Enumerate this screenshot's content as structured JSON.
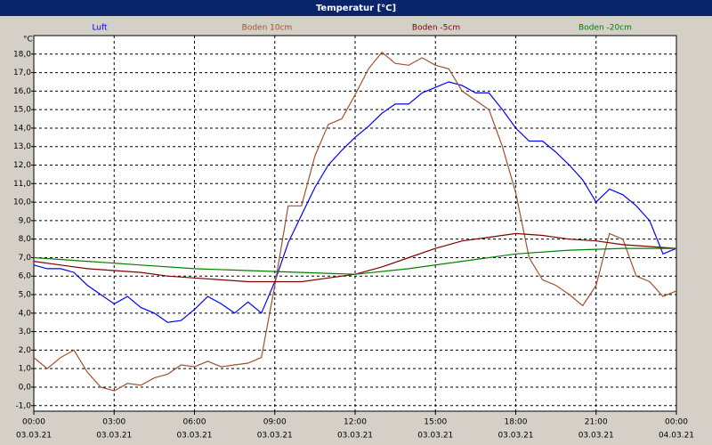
{
  "chart_data": {
    "type": "line",
    "title": "Temperatur [°C]",
    "y_unit": "°C",
    "xlim": [
      0,
      24
    ],
    "ylim": [
      -1.3,
      19.0
    ],
    "grid": true,
    "xticks": [
      {
        "value": 0,
        "label": "00:00"
      },
      {
        "value": 3,
        "label": "03:00"
      },
      {
        "value": 6,
        "label": "06:00"
      },
      {
        "value": 9,
        "label": "09:00"
      },
      {
        "value": 12,
        "label": "12:00"
      },
      {
        "value": 15,
        "label": "15:00"
      },
      {
        "value": 18,
        "label": "18:00"
      },
      {
        "value": 21,
        "label": "21:00"
      },
      {
        "value": 24,
        "label": "00:00"
      }
    ],
    "xtick_dates": [
      "03.03.21",
      "03.03.21",
      "03.03.21",
      "03.03.21",
      "03.03.21",
      "03.03.21",
      "03.03.21",
      "03.03.21",
      "04.03.21"
    ],
    "yticks": [
      {
        "value": -1,
        "label": "-1,0"
      },
      {
        "value": 0,
        "label": "0,0"
      },
      {
        "value": 1,
        "label": "1,0"
      },
      {
        "value": 2,
        "label": "2,0"
      },
      {
        "value": 3,
        "label": "3,0"
      },
      {
        "value": 4,
        "label": "4,0"
      },
      {
        "value": 5,
        "label": "5,0"
      },
      {
        "value": 6,
        "label": "6,0"
      },
      {
        "value": 7,
        "label": "7,0"
      },
      {
        "value": 8,
        "label": "8,0"
      },
      {
        "value": 9,
        "label": "9,0"
      },
      {
        "value": 10,
        "label": "10,0"
      },
      {
        "value": 11,
        "label": "11,0"
      },
      {
        "value": 12,
        "label": "12,0"
      },
      {
        "value": 13,
        "label": "13,0"
      },
      {
        "value": 14,
        "label": "14,0"
      },
      {
        "value": 15,
        "label": "15,0"
      },
      {
        "value": 16,
        "label": "16,0"
      },
      {
        "value": 17,
        "label": "17,0"
      },
      {
        "value": 18,
        "label": "18,0"
      }
    ],
    "series": [
      {
        "name": "Luft",
        "color": "#0000ff",
        "x": [
          0,
          0.5,
          1,
          1.5,
          2,
          2.5,
          3,
          3.5,
          4,
          4.5,
          5,
          5.5,
          6,
          6.5,
          7,
          7.5,
          8,
          8.5,
          9,
          9.5,
          10,
          10.5,
          11,
          11.5,
          12,
          12.5,
          13,
          13.5,
          14,
          14.5,
          15,
          15.5,
          16,
          16.5,
          17,
          17.5,
          18,
          18.5,
          19,
          19.5,
          20,
          20.5,
          21,
          21.5,
          22,
          22.5,
          23,
          23.5,
          24
        ],
        "values": [
          6.6,
          6.4,
          6.4,
          6.2,
          5.5,
          5.0,
          4.5,
          4.9,
          4.3,
          4.0,
          3.5,
          3.6,
          4.2,
          4.9,
          4.5,
          4.0,
          4.6,
          4.0,
          5.7,
          7.8,
          9.3,
          10.8,
          12.0,
          12.8,
          13.5,
          14.1,
          14.8,
          15.3,
          15.3,
          15.9,
          16.2,
          16.5,
          16.3,
          15.9,
          15.9,
          15.0,
          14.0,
          13.3,
          13.3,
          12.7,
          12.0,
          11.2,
          10.0,
          10.7,
          10.4,
          9.8,
          9.0,
          7.2,
          7.5
        ]
      },
      {
        "name": "Boden 10cm",
        "color": "#a0522d",
        "x": [
          0,
          0.5,
          1,
          1.5,
          2,
          2.5,
          3,
          3.5,
          4,
          4.5,
          5,
          5.5,
          6,
          6.5,
          7,
          7.5,
          8,
          8.5,
          9,
          9.5,
          10,
          10.5,
          11,
          11.5,
          12,
          12.5,
          13,
          13.5,
          14,
          14.5,
          15,
          15.5,
          16,
          16.5,
          17,
          17.5,
          18,
          18.5,
          19,
          19.5,
          20,
          20.5,
          21,
          21.5,
          22,
          22.5,
          23,
          23.5,
          24
        ],
        "values": [
          1.6,
          1.0,
          1.6,
          2.0,
          0.8,
          0.0,
          -0.2,
          0.2,
          0.1,
          0.5,
          0.7,
          1.2,
          1.1,
          1.4,
          1.1,
          1.2,
          1.3,
          1.6,
          5.5,
          9.8,
          9.8,
          12.5,
          14.2,
          14.5,
          15.8,
          17.2,
          18.1,
          17.5,
          17.4,
          17.8,
          17.4,
          17.2,
          16.0,
          15.5,
          15.0,
          13.0,
          10.5,
          7.0,
          5.8,
          5.5,
          5.0,
          4.4,
          5.5,
          8.3,
          8.0,
          6.0,
          5.7,
          4.9,
          5.2
        ]
      },
      {
        "name": "Boden -5cm",
        "color": "#800000",
        "x": [
          0,
          1,
          2,
          3,
          4,
          5,
          6,
          7,
          8,
          9,
          10,
          11,
          12,
          13,
          14,
          15,
          16,
          17,
          18,
          19,
          20,
          21,
          22,
          23,
          24
        ],
        "values": [
          6.8,
          6.6,
          6.4,
          6.3,
          6.2,
          6.0,
          5.9,
          5.8,
          5.7,
          5.7,
          5.7,
          5.9,
          6.1,
          6.5,
          7.0,
          7.5,
          7.9,
          8.1,
          8.3,
          8.2,
          8.0,
          7.9,
          7.7,
          7.6,
          7.5
        ]
      },
      {
        "name": "Boden -20cm",
        "color": "#008000",
        "x": [
          0,
          2,
          4,
          6,
          8,
          10,
          12,
          14,
          16,
          18,
          20,
          22,
          24
        ],
        "values": [
          7.0,
          6.8,
          6.6,
          6.4,
          6.3,
          6.2,
          6.1,
          6.4,
          6.8,
          7.2,
          7.4,
          7.5,
          7.5
        ]
      }
    ]
  }
}
